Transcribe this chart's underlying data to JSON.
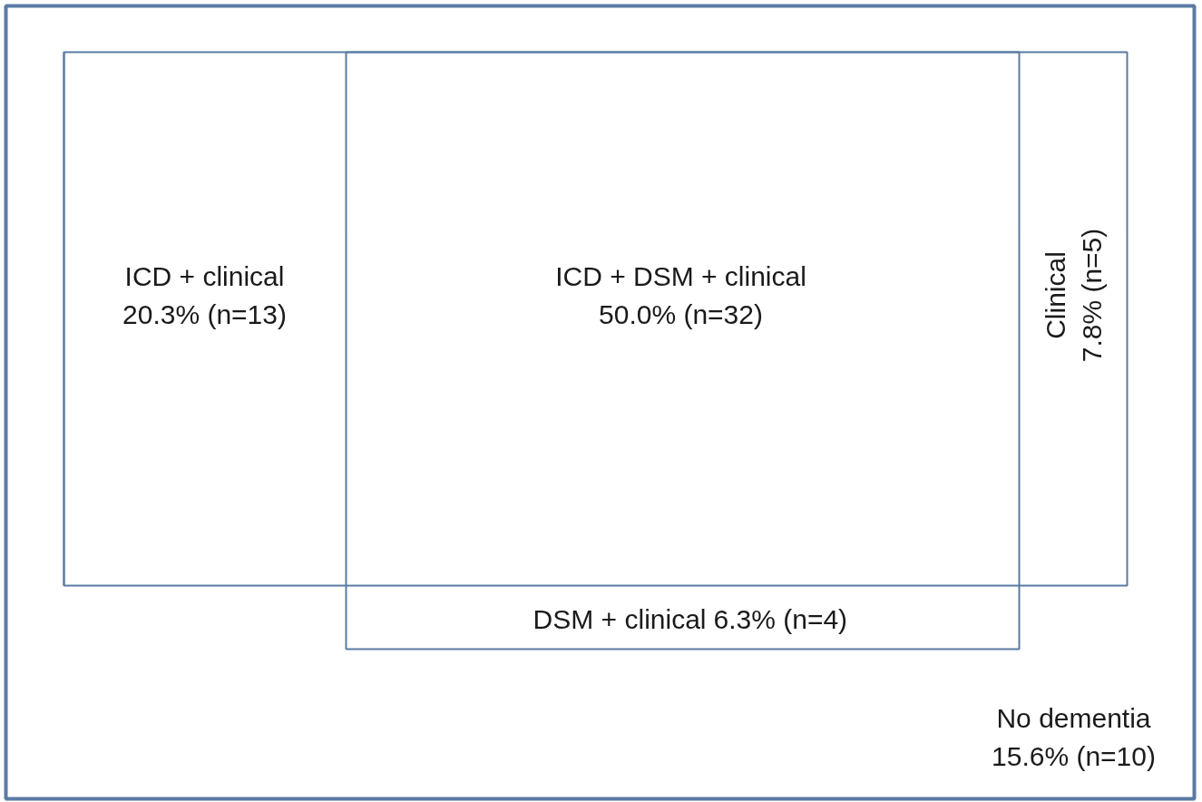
{
  "chart_data": {
    "type": "other",
    "categories": [
      "ICD + clinical",
      "ICD + DSM + clinical",
      "Clinical",
      "DSM + clinical",
      "No dementia"
    ],
    "values": [
      20.3,
      50.0,
      7.8,
      6.3,
      15.6
    ],
    "value_labels": [
      "20.3% (n=13)",
      "50.0% (n=32)",
      "7.8% (n=5)",
      "6.3% (n=4)",
      "15.6% (n=10)"
    ],
    "color": "#5b7ba3"
  }
}
